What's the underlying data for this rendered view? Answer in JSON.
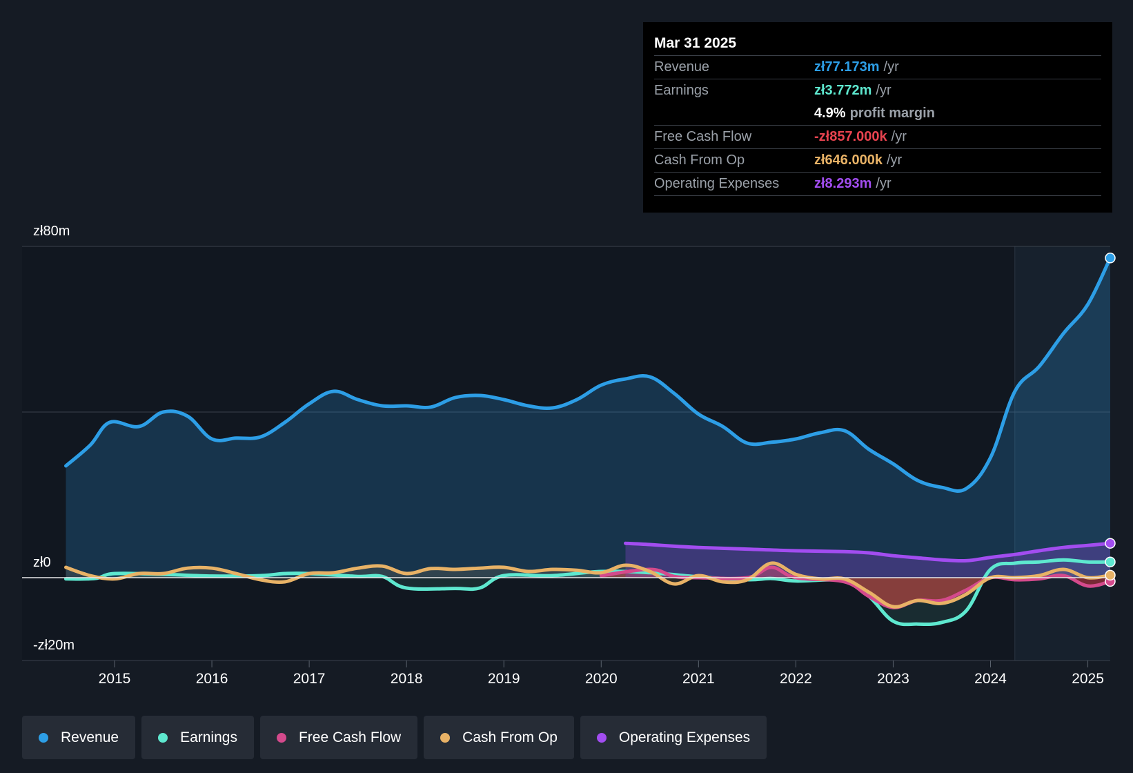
{
  "tooltip": {
    "date": "Mar 31 2025",
    "rows": [
      {
        "label": "Revenue",
        "value": "zł77.173m",
        "unit": "/yr",
        "color": "#2d9ee6"
      },
      {
        "label": "Earnings",
        "value": "zł3.772m",
        "unit": "/yr",
        "color": "#5ee8cf"
      },
      {
        "label": "",
        "value": "4.9%",
        "unit": "profit margin",
        "color": "#ffffff"
      },
      {
        "label": "Free Cash Flow",
        "value": "-zł857.000k",
        "unit": "/yr",
        "color": "#e8434f"
      },
      {
        "label": "Cash From Op",
        "value": "zł646.000k",
        "unit": "/yr",
        "color": "#e8b266"
      },
      {
        "label": "Operating Expenses",
        "value": "zł8.293m",
        "unit": "/yr",
        "color": "#a24df0"
      }
    ]
  },
  "legend": [
    {
      "label": "Revenue",
      "color": "#2d9ee6"
    },
    {
      "label": "Earnings",
      "color": "#5ee8cf"
    },
    {
      "label": "Free Cash Flow",
      "color": "#d44a8c"
    },
    {
      "label": "Cash From Op",
      "color": "#e8b266"
    },
    {
      "label": "Operating Expenses",
      "color": "#a24df0"
    }
  ],
  "chart_data": {
    "type": "line",
    "title": "",
    "xlabel": "",
    "ylabel": "",
    "ylim": [
      -20,
      80
    ],
    "xlim": [
      2014.05,
      2025.23
    ],
    "y_tick_labels": [
      {
        "value": 80,
        "label": "zł80m"
      },
      {
        "value": 0,
        "label": "zł0"
      },
      {
        "value": -20,
        "label": "-zł20m"
      }
    ],
    "x_ticks": [
      2015,
      2016,
      2017,
      2018,
      2019,
      2020,
      2021,
      2022,
      2023,
      2024,
      2025
    ],
    "x_tick_labels": [
      "2015",
      "2016",
      "2017",
      "2018",
      "2019",
      "2020",
      "2021",
      "2022",
      "2023",
      "2024",
      "2025"
    ],
    "highlight_start": 2024.25,
    "series": [
      {
        "name": "Revenue",
        "color": "#2d9ee6",
        "x": [
          2014.5,
          2014.75,
          2014.95,
          2015.25,
          2015.5,
          2015.75,
          2016,
          2016.25,
          2016.5,
          2016.75,
          2017,
          2017.25,
          2017.5,
          2017.75,
          2018,
          2018.25,
          2018.5,
          2018.75,
          2019,
          2019.25,
          2019.5,
          2019.75,
          2020,
          2020.25,
          2020.5,
          2020.75,
          2021,
          2021.25,
          2021.5,
          2021.75,
          2022,
          2022.25,
          2022.5,
          2022.75,
          2023,
          2023.25,
          2023.5,
          2023.75,
          2024,
          2024.25,
          2024.5,
          2024.75,
          2025,
          2025.23
        ],
        "values": [
          27,
          32,
          37.5,
          36.5,
          40,
          39,
          33.5,
          33.7,
          34,
          37.5,
          42,
          45,
          43,
          41.5,
          41.5,
          41.2,
          43.5,
          44,
          43,
          41.5,
          41,
          43,
          46.5,
          48,
          48.5,
          44.5,
          39.5,
          36.5,
          32.5,
          32.7,
          33.5,
          35,
          35.5,
          31,
          27.5,
          23.5,
          21.8,
          21.5,
          29,
          45,
          51,
          59,
          66,
          77.2
        ]
      },
      {
        "name": "Earnings",
        "color": "#5ee8cf",
        "x": [
          2014.5,
          2014.8,
          2015,
          2015.5,
          2016,
          2016.5,
          2016.75,
          2017,
          2017.5,
          2017.75,
          2018,
          2018.5,
          2018.75,
          2019,
          2019.5,
          2020,
          2020.5,
          2021,
          2021.5,
          2021.75,
          2022,
          2022.5,
          2022.75,
          2023,
          2023.25,
          2023.5,
          2023.75,
          2024,
          2024.25,
          2024.5,
          2024.75,
          2025,
          2025.23
        ],
        "values": [
          -0.3,
          -0.2,
          1,
          0.8,
          0.4,
          0.5,
          1,
          1,
          0.3,
          0.3,
          -2.5,
          -2.6,
          -2.5,
          0.5,
          0.5,
          1.5,
          1.2,
          0.2,
          -0.5,
          -0.2,
          -0.8,
          -0.8,
          -4.5,
          -10.5,
          -11.2,
          -10.8,
          -8,
          2,
          3.5,
          3.8,
          4.3,
          3.8,
          3.8
        ]
      },
      {
        "name": "Free Cash Flow",
        "color": "#d44a8c",
        "x": [
          2020,
          2020.5,
          2020.75,
          2021,
          2021.5,
          2021.75,
          2022,
          2022.5,
          2022.75,
          2023,
          2023.25,
          2023.5,
          2023.75,
          2024,
          2024.25,
          2024.5,
          2024.75,
          2025,
          2025.23
        ],
        "values": [
          0.5,
          2,
          0.3,
          0,
          0,
          2.5,
          0,
          -1,
          -4.5,
          -7.2,
          -5.5,
          -5.5,
          -3,
          0,
          -0.5,
          -0.3,
          0.5,
          -2,
          -0.9
        ]
      },
      {
        "name": "Cash From Op",
        "color": "#e8b266",
        "x": [
          2014.5,
          2014.75,
          2015,
          2015.25,
          2015.5,
          2015.75,
          2016,
          2016.25,
          2016.5,
          2016.75,
          2017,
          2017.25,
          2017.5,
          2017.75,
          2018,
          2018.25,
          2018.5,
          2018.75,
          2019,
          2019.25,
          2019.5,
          2019.75,
          2020,
          2020.25,
          2020.5,
          2020.75,
          2021,
          2021.25,
          2021.5,
          2021.75,
          2022,
          2022.25,
          2022.5,
          2022.75,
          2023,
          2023.25,
          2023.5,
          2023.75,
          2024,
          2024.25,
          2024.5,
          2024.75,
          2025,
          2025.23
        ],
        "values": [
          2.5,
          0.5,
          -0.3,
          1,
          1,
          2.3,
          2.3,
          1,
          -0.5,
          -1,
          1,
          1.2,
          2.3,
          2.8,
          1,
          2.2,
          2,
          2.3,
          2.5,
          1.5,
          2,
          1.8,
          1.2,
          3,
          1.5,
          -1.5,
          0.5,
          -1,
          -0.5,
          3.5,
          0.8,
          -0.3,
          -0.3,
          -3.5,
          -7,
          -5.5,
          -6.2,
          -4,
          0,
          0,
          0.5,
          2,
          0,
          0.6
        ]
      },
      {
        "name": "Operating Expenses",
        "color": "#a24df0",
        "x": [
          2020.25,
          2020.5,
          2020.75,
          2021,
          2021.5,
          2022,
          2022.5,
          2022.75,
          2023,
          2023.25,
          2023.5,
          2023.75,
          2024,
          2024.25,
          2024.5,
          2024.75,
          2025,
          2025.23
        ],
        "values": [
          8.3,
          8,
          7.6,
          7.3,
          6.9,
          6.5,
          6.3,
          6,
          5.3,
          4.8,
          4.3,
          4.1,
          4.9,
          5.6,
          6.5,
          7.3,
          7.8,
          8.3
        ]
      }
    ]
  }
}
